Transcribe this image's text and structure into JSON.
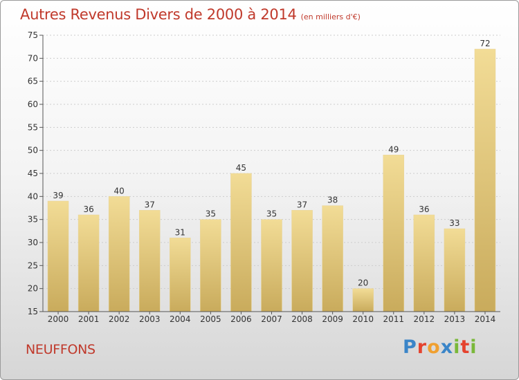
{
  "header": {
    "title": "Autres Revenus Divers de 2000 à 2014",
    "subtitle": "(en milliers d'€)"
  },
  "footer": {
    "commune": "NEUFFONS",
    "logo_text": "Proxiti",
    "logo_letters": [
      "P",
      "r",
      "o",
      "x",
      "i",
      "t",
      "i"
    ]
  },
  "colors": {
    "title": "#c0392b",
    "bar_light": "#f2dc96",
    "bar_dark": "#c9ab5c",
    "axis": "#555555",
    "grid": "#cccccc"
  },
  "chart_data": {
    "type": "bar",
    "title": "Autres Revenus Divers de 2000 à 2014",
    "subtitle": "(en milliers d'€)",
    "xlabel": "",
    "ylabel": "",
    "categories": [
      "2000",
      "2001",
      "2002",
      "2003",
      "2004",
      "2005",
      "2006",
      "2007",
      "2008",
      "2009",
      "2010",
      "2011",
      "2012",
      "2013",
      "2014"
    ],
    "values": [
      39,
      36,
      40,
      37,
      31,
      35,
      45,
      35,
      37,
      38,
      20,
      49,
      36,
      33,
      72
    ],
    "ylim": [
      15,
      75
    ],
    "yticks": [
      15,
      20,
      25,
      30,
      35,
      40,
      45,
      50,
      55,
      60,
      65,
      70,
      75
    ],
    "grid": true,
    "data_labels": true
  }
}
